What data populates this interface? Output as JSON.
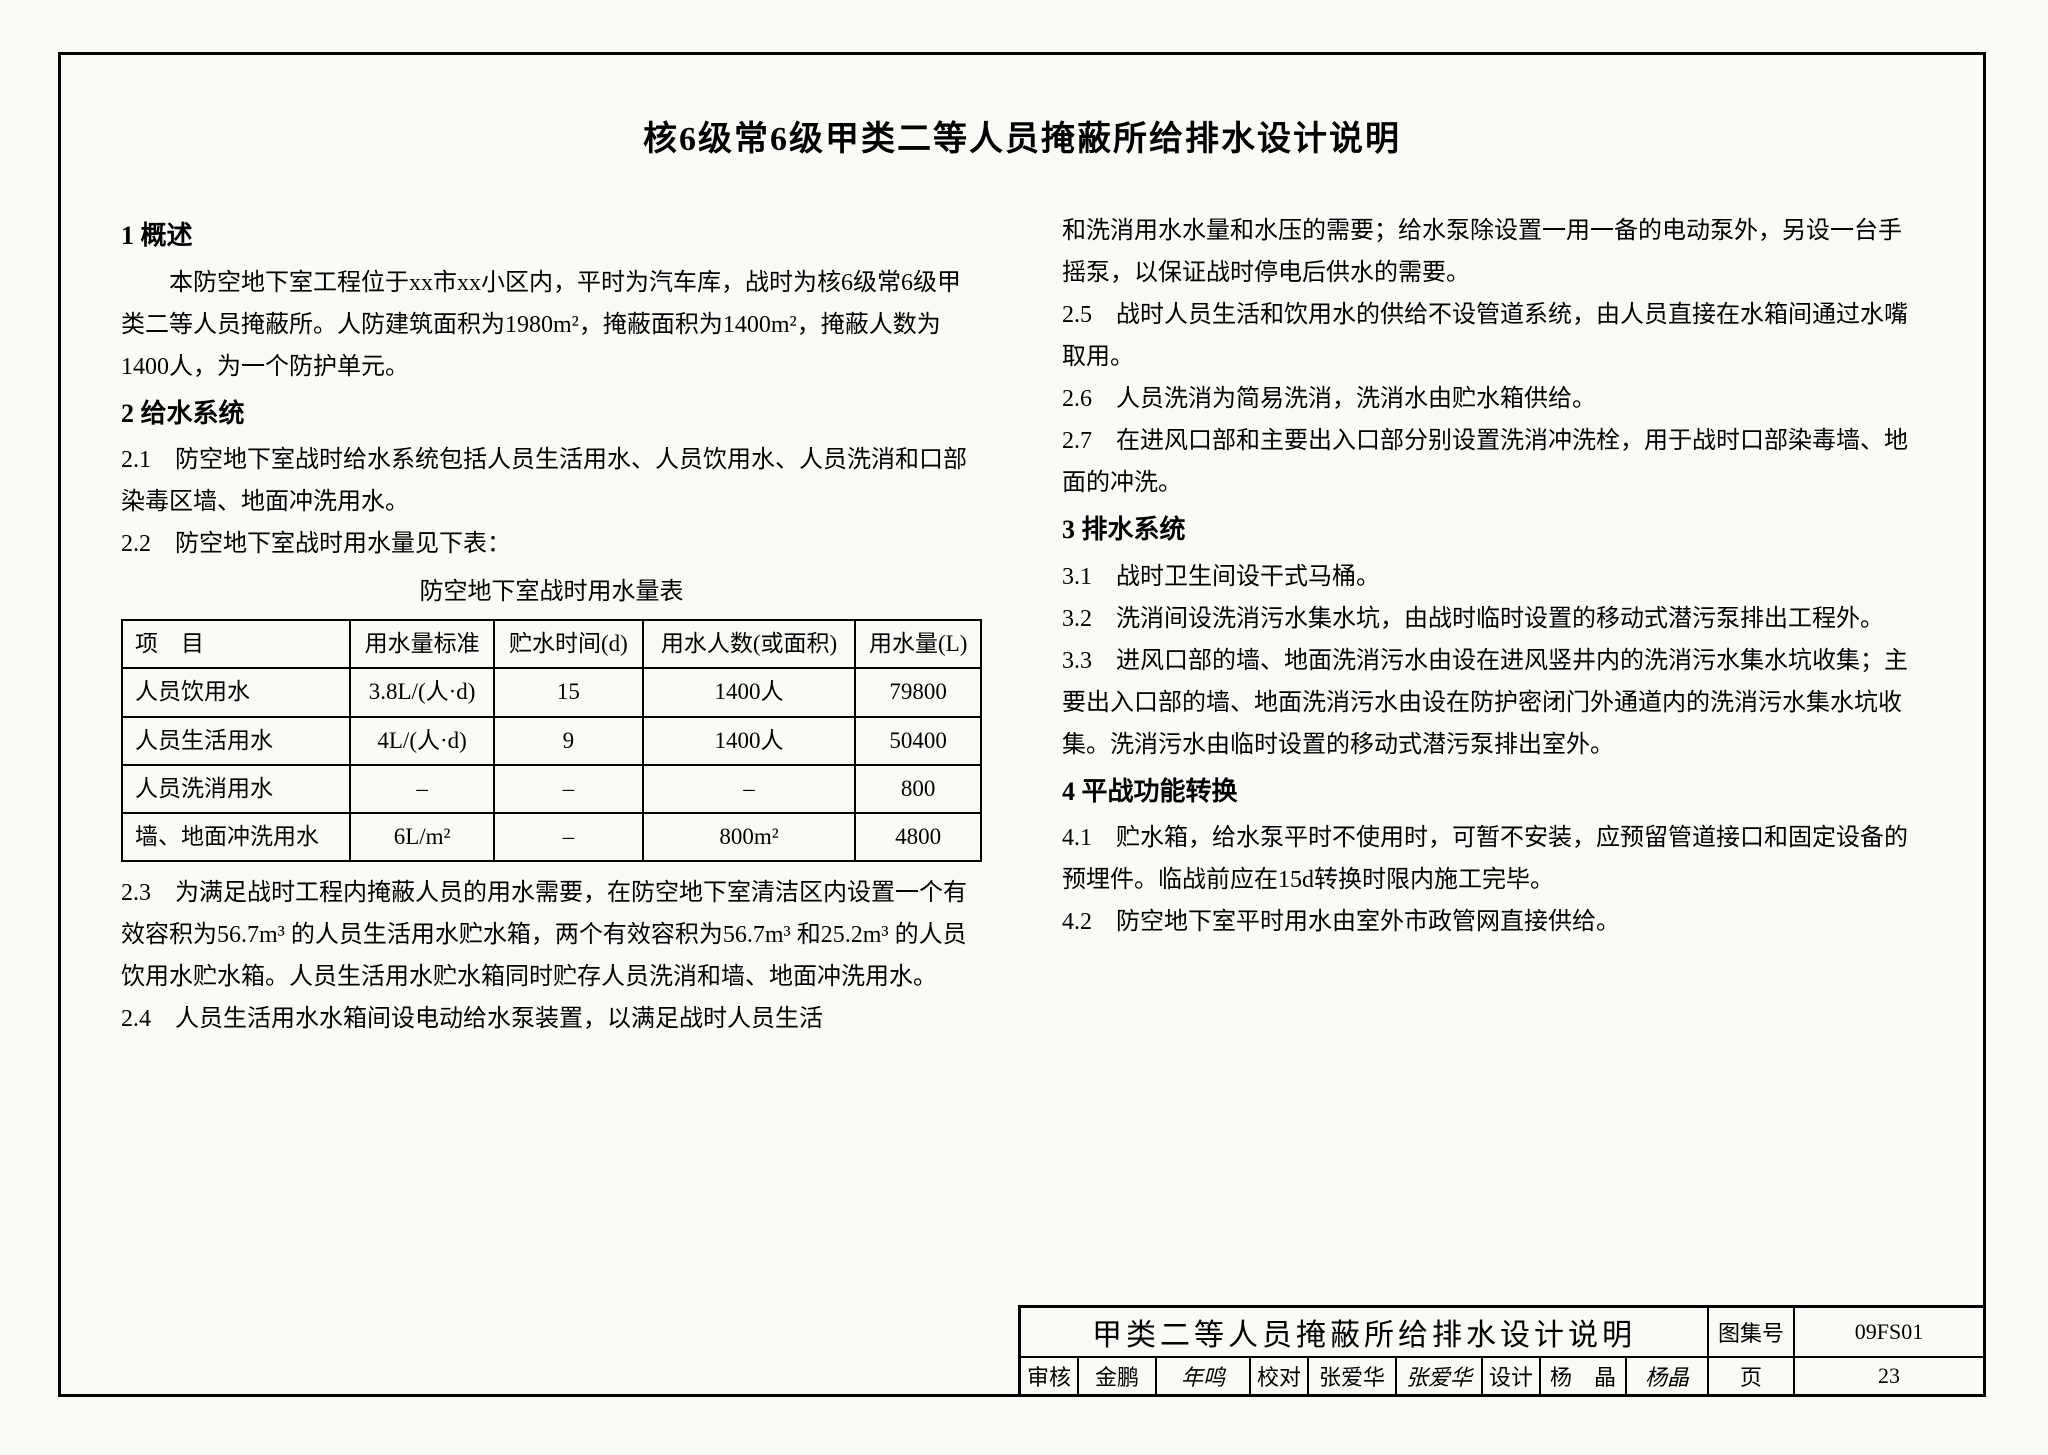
{
  "title": "核6级常6级甲类二等人员掩蔽所给排水设计说明",
  "left": {
    "s1_head": "1 概述",
    "s1_p": "本防空地下室工程位于xx市xx小区内，平时为汽车库，战时为核6级常6级甲类二等人员掩蔽所。人防建筑面积为1980m²，掩蔽面积为1400m²，掩蔽人数为1400人，为一个防护单元。",
    "s2_head": "2 给水系统",
    "s2_1": "2.1　防空地下室战时给水系统包括人员生活用水、人员饮用水、人员洗消和口部染毒区墙、地面冲洗用水。",
    "s2_2": "2.2　防空地下室战时用水量见下表：",
    "table_caption": "防空地下室战时用水量表",
    "table": {
      "headers": [
        "项　目",
        "用水量标准",
        "贮水时间(d)",
        "用水人数(或面积)",
        "用水量(L)"
      ],
      "rows": [
        [
          "人员饮用水",
          "3.8L/(人·d)",
          "15",
          "1400人",
          "79800"
        ],
        [
          "人员生活用水",
          "4L/(人·d)",
          "9",
          "1400人",
          "50400"
        ],
        [
          "人员洗消用水",
          "–",
          "–",
          "–",
          "800"
        ],
        [
          "墙、地面冲洗用水",
          "6L/m²",
          "–",
          "800m²",
          "4800"
        ]
      ]
    },
    "s2_3": "2.3　为满足战时工程内掩蔽人员的用水需要，在防空地下室清洁区内设置一个有效容积为56.7m³ 的人员生活用水贮水箱，两个有效容积为56.7m³ 和25.2m³ 的人员饮用水贮水箱。人员生活用水贮水箱同时贮存人员洗消和墙、地面冲洗用水。",
    "s2_4": "2.4　人员生活用水水箱间设电动给水泵装置，以满足战时人员生活"
  },
  "right": {
    "s2_4b": "和洗消用水水量和水压的需要；给水泵除设置一用一备的电动泵外，另设一台手摇泵，以保证战时停电后供水的需要。",
    "s2_5": "2.5　战时人员生活和饮用水的供给不设管道系统，由人员直接在水箱间通过水嘴取用。",
    "s2_6": "2.6　人员洗消为简易洗消，洗消水由贮水箱供给。",
    "s2_7": "2.7　在进风口部和主要出入口部分别设置洗消冲洗栓，用于战时口部染毒墙、地面的冲洗。",
    "s3_head": "3 排水系统",
    "s3_1": "3.1　战时卫生间设干式马桶。",
    "s3_2": "3.2　洗消间设洗消污水集水坑，由战时临时设置的移动式潜污泵排出工程外。",
    "s3_3": "3.3　进风口部的墙、地面洗消污水由设在进风竖井内的洗消污水集水坑收集；主要出入口部的墙、地面洗消污水由设在防护密闭门外通道内的洗消污水集水坑收集。洗消污水由临时设置的移动式潜污泵排出室外。",
    "s4_head": "4 平战功能转换",
    "s4_1": "4.1　贮水箱，给水泵平时不使用时，可暂不安装，应预留管道接口和固定设备的预埋件。临战前应在15d转换时限内施工完毕。",
    "s4_2": "4.2　防空地下室平时用水由室外市政管网直接供给。"
  },
  "tb": {
    "doc_title": "甲类二等人员掩蔽所给排水设计说明",
    "atlas_label": "图集号",
    "atlas_no": "09FS01",
    "review": "审核",
    "review_name": "金鹏",
    "review_sig": "年鸣",
    "check": "校对",
    "check_name": "张爱华",
    "check_sig": "张爱华",
    "design": "设计",
    "design_name": "杨　晶",
    "design_sig": "杨晶",
    "page_label": "页",
    "page_no": "23"
  },
  "colors": {
    "border": "#000000",
    "bg": "#fbfaf7",
    "text": "#000000"
  }
}
